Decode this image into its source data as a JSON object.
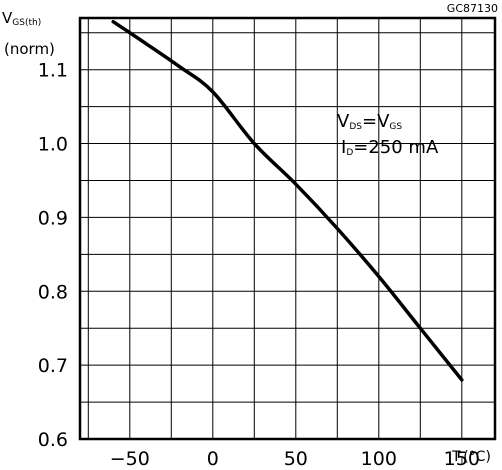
{
  "figure_code": "GC87130",
  "chart_data": {
    "type": "line",
    "ylabel": {
      "main": "V",
      "sub": "GS(th)",
      "line2": "(norm)"
    },
    "xlabel": {
      "main": "T",
      "sub": "J",
      "unit": "(°C)"
    },
    "annotation": {
      "line1": {
        "a": "V",
        "a_sub": "DS",
        "eq": "=V",
        "b_sub": "GS"
      },
      "line2": {
        "a": "I",
        "a_sub": "D",
        "rest": "=250 mA"
      }
    },
    "xlim": [
      -80,
      170
    ],
    "ylim": [
      0.6,
      1.17
    ],
    "x_ticks": [
      -50,
      0,
      50,
      100,
      150
    ],
    "y_ticks": [
      0.6,
      0.7,
      0.8,
      0.9,
      1.0,
      1.1
    ],
    "y_tick_labels": [
      "0.6",
      "0.7",
      "0.8",
      "0.9",
      "1.0",
      "1.1"
    ],
    "grid": true,
    "series": [
      {
        "x": [
          -60,
          -40,
          -20,
          0,
          25,
          50,
          75,
          100,
          125,
          150
        ],
        "y": [
          1.165,
          1.135,
          1.104,
          1.07,
          1.0,
          0.945,
          0.885,
          0.82,
          0.75,
          0.68
        ]
      }
    ]
  }
}
